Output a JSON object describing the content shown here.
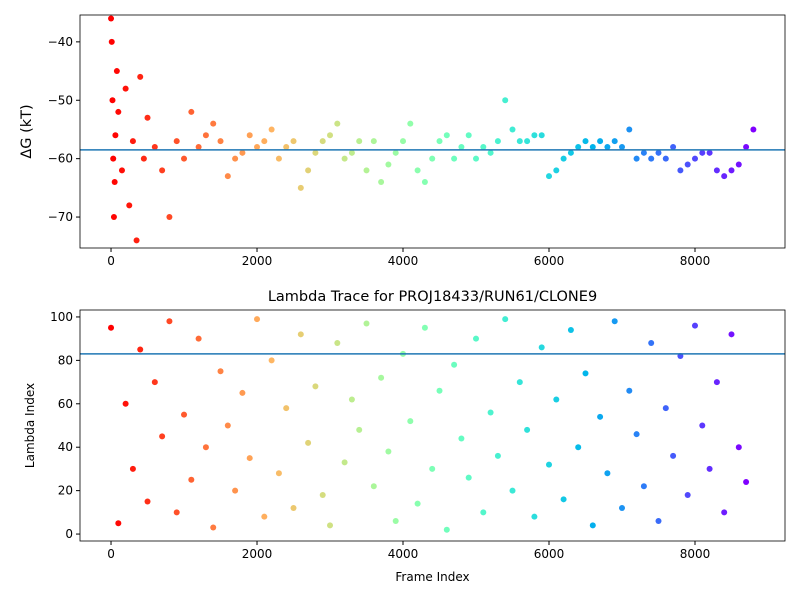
{
  "chart_data": [
    {
      "type": "scatter",
      "ylabel": "ΔG (kT)",
      "cmap": "rainbow_r",
      "hline": -58.5,
      "hline_color": "#1f77b4",
      "xlim": [
        -425,
        9233
      ],
      "ylim": [
        -75.3,
        -35.4
      ],
      "xticks": [
        0,
        2000,
        4000,
        6000,
        8000
      ],
      "yticks": [
        {
          "value": -40,
          "label": "−40"
        },
        {
          "value": -50,
          "label": "−50"
        },
        {
          "value": -60,
          "label": "−60"
        },
        {
          "value": -70,
          "label": "−70"
        }
      ],
      "x": [
        0,
        10,
        20,
        30,
        40,
        50,
        60,
        80,
        100,
        150,
        200,
        250,
        300,
        350,
        400,
        450,
        500,
        600,
        700,
        800,
        900,
        1000,
        1100,
        1200,
        1300,
        1400,
        1500,
        1600,
        1700,
        1800,
        1900,
        2000,
        2100,
        2200,
        2300,
        2400,
        2500,
        2600,
        2700,
        2800,
        2900,
        3000,
        3100,
        3200,
        3300,
        3400,
        3500,
        3600,
        3700,
        3800,
        3900,
        4000,
        4100,
        4200,
        4300,
        4400,
        4500,
        4600,
        4700,
        4800,
        4900,
        5000,
        5100,
        5200,
        5300,
        5400,
        5500,
        5600,
        5700,
        5800,
        5900,
        6000,
        6100,
        6200,
        6300,
        6400,
        6500,
        6600,
        6700,
        6800,
        6900,
        7000,
        7100,
        7200,
        7300,
        7400,
        7500,
        7600,
        7700,
        7800,
        7900,
        8000,
        8100,
        8200,
        8300,
        8400,
        8500,
        8600,
        8700,
        8800
      ],
      "y": [
        -36,
        -40,
        -50,
        -60,
        -70,
        -64,
        -56,
        -45,
        -52,
        -62,
        -48,
        -68,
        -57,
        -74,
        -46,
        -60,
        -53,
        -58,
        -62,
        -70,
        -57,
        -60,
        -52,
        -58,
        -56,
        -54,
        -57,
        -63,
        -60,
        -59,
        -56,
        -58,
        -57,
        -55,
        -60,
        -58,
        -57,
        -65,
        -62,
        -59,
        -57,
        -56,
        -54,
        -60,
        -59,
        -57,
        -62,
        -57,
        -64,
        -61,
        -59,
        -57,
        -54,
        -62,
        -64,
        -60,
        -57,
        -56,
        -60,
        -58,
        -56,
        -60,
        -58,
        -59,
        -57,
        -50,
        -55,
        -57,
        -57,
        -56,
        -56,
        -63,
        -62,
        -60,
        -59,
        -58,
        -57,
        -58,
        -57,
        -58,
        -57,
        -58,
        -55,
        -60,
        -59,
        -60,
        -59,
        -60,
        -58,
        -62,
        -61,
        -60,
        -59,
        -59,
        -62,
        -63,
        -62,
        -61,
        -58,
        -55
      ]
    },
    {
      "type": "scatter",
      "title": "Lambda Trace for PROJ18433/RUN61/CLONE9",
      "xlabel": "Frame Index",
      "ylabel": "Lambda Index",
      "cmap": "rainbow_r",
      "hline": 83,
      "hline_color": "#1f77b4",
      "xlim": [
        -425,
        9233
      ],
      "ylim": [
        -3.2,
        103.2
      ],
      "xticks": [
        0,
        2000,
        4000,
        6000,
        8000
      ],
      "yticks": [
        0,
        20,
        40,
        60,
        80,
        100
      ],
      "x": [
        0,
        100,
        200,
        300,
        400,
        500,
        600,
        700,
        800,
        900,
        1000,
        1100,
        1200,
        1300,
        1400,
        1500,
        1600,
        1700,
        1800,
        1900,
        2000,
        2100,
        2200,
        2300,
        2400,
        2500,
        2600,
        2700,
        2800,
        2900,
        3000,
        3100,
        3200,
        3300,
        3400,
        3500,
        3600,
        3700,
        3800,
        3900,
        4000,
        4100,
        4200,
        4300,
        4400,
        4500,
        4600,
        4700,
        4800,
        4900,
        5000,
        5100,
        5200,
        5300,
        5400,
        5500,
        5600,
        5700,
        5800,
        5900,
        6000,
        6100,
        6200,
        6300,
        6400,
        6500,
        6600,
        6700,
        6800,
        6900,
        7000,
        7100,
        7200,
        7300,
        7400,
        7500,
        7600,
        7700,
        7800,
        7900,
        8000,
        8100,
        8200,
        8300,
        8400,
        8500,
        8600,
        8700
      ],
      "y": [
        95,
        5,
        60,
        30,
        85,
        15,
        70,
        45,
        98,
        10,
        55,
        25,
        90,
        40,
        3,
        75,
        50,
        20,
        65,
        35,
        99,
        8,
        80,
        28,
        58,
        12,
        92,
        42,
        68,
        18,
        4,
        88,
        33,
        62,
        48,
        97,
        22,
        72,
        38,
        6,
        83,
        52,
        14,
        95,
        30,
        66,
        2,
        78,
        44,
        26,
        90,
        10,
        56,
        36,
        99,
        20,
        70,
        48,
        8,
        86,
        32,
        62,
        16,
        94,
        40,
        74,
        4,
        54,
        28,
        98,
        12,
        66,
        46,
        22,
        88,
        6,
        58,
        36,
        82,
        18,
        96,
        50,
        30,
        70,
        10,
        92,
        40,
        24
      ]
    }
  ]
}
